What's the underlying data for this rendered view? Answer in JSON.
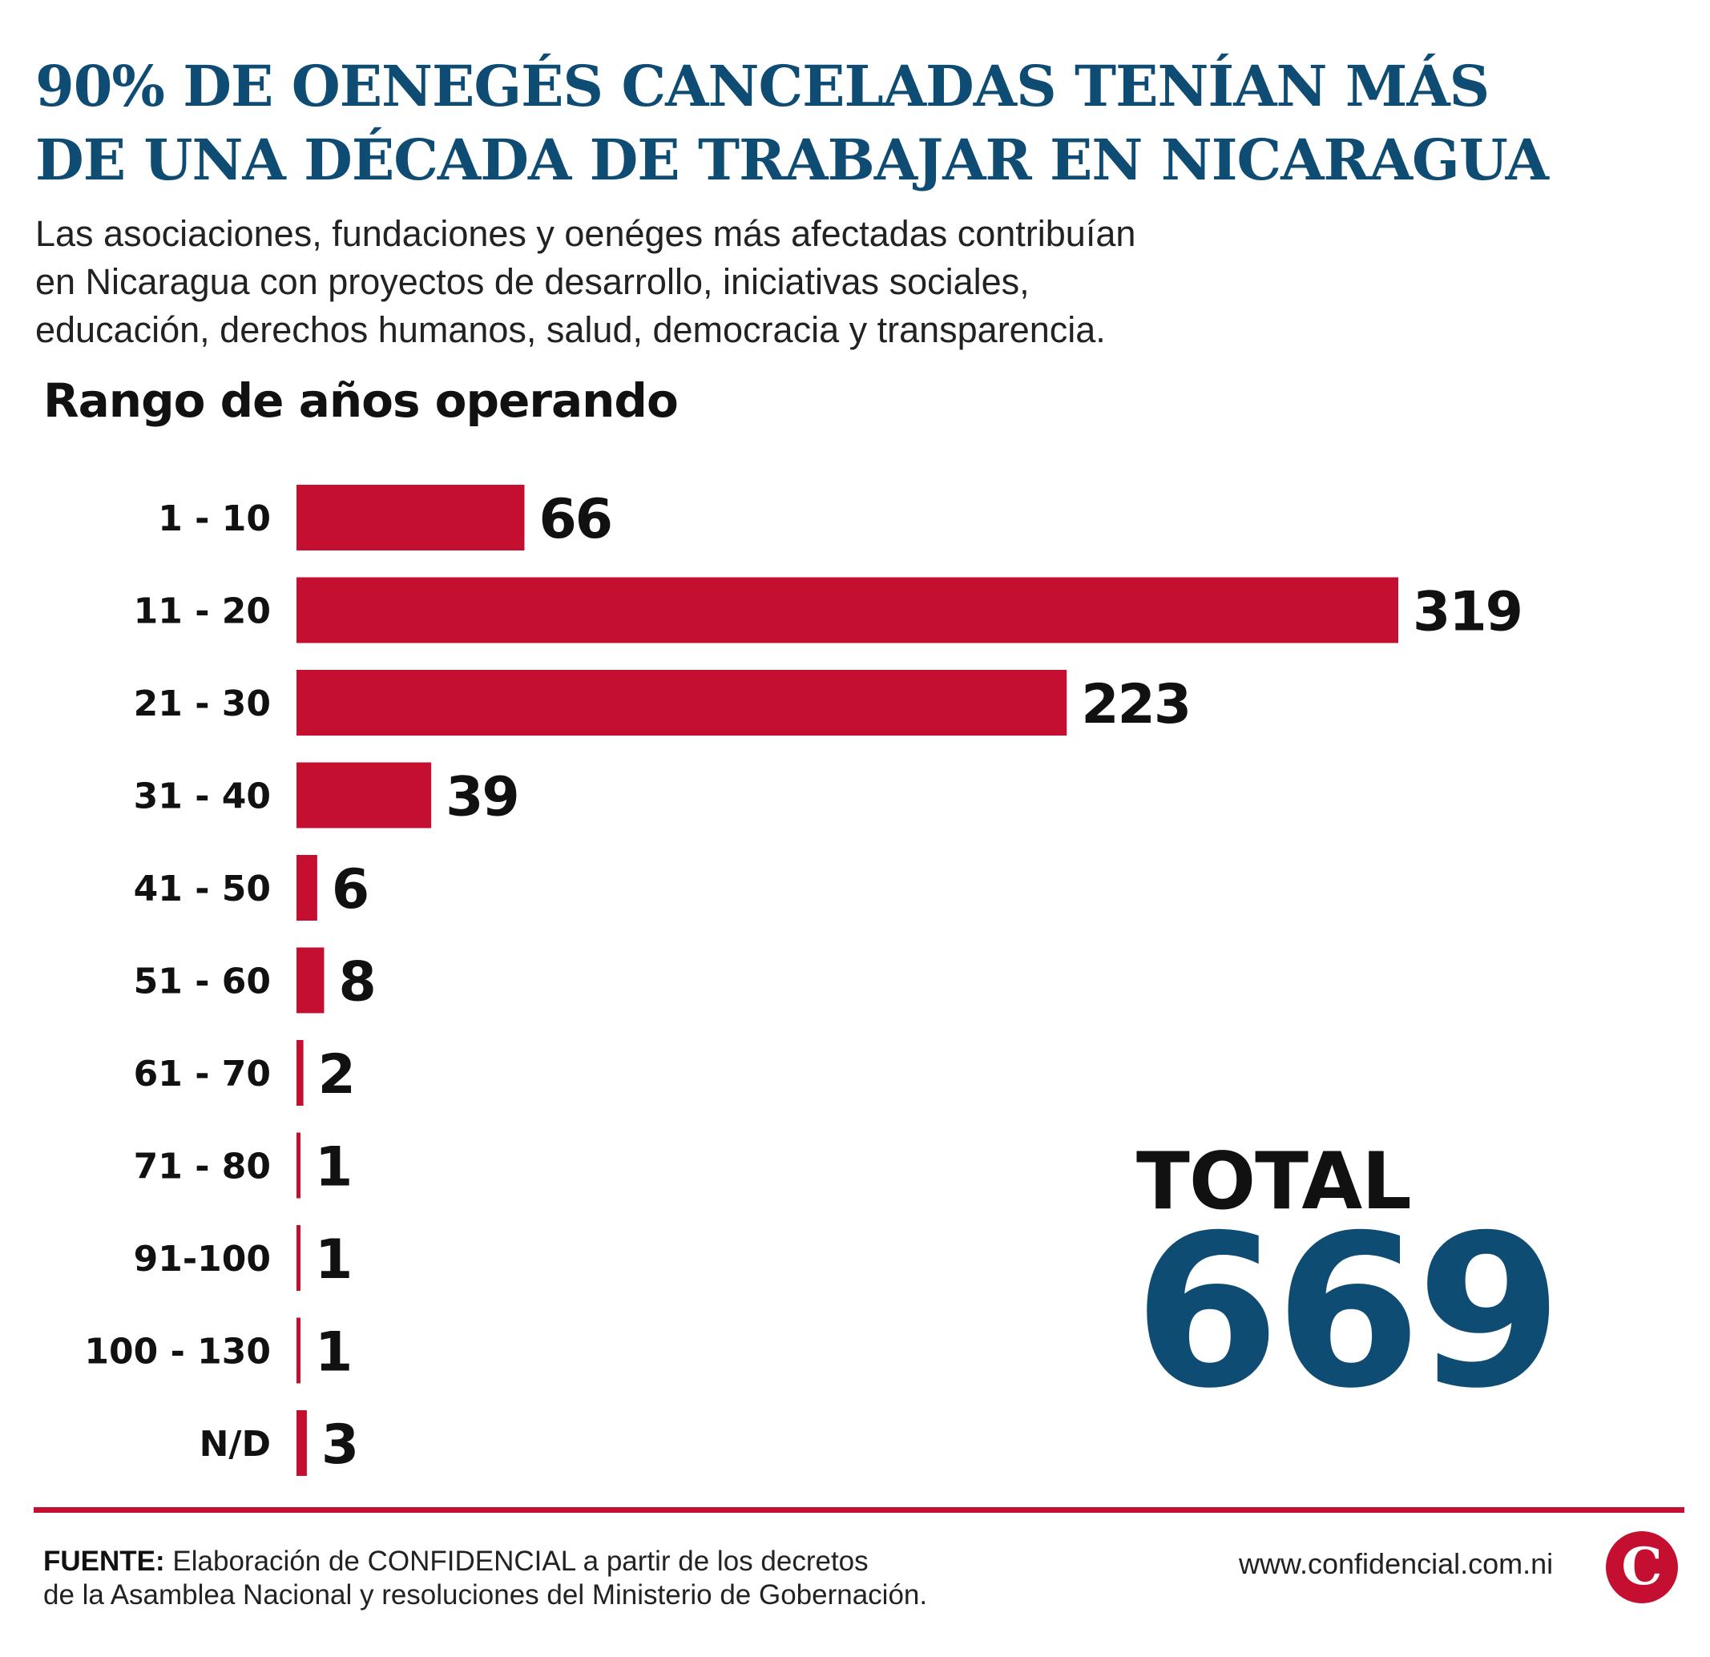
{
  "title_lines": [
    "90% DE OENEGÉS CANCELADAS TENÍAN MÁS",
    "DE UNA DÉCADA DE TRABAJAR EN NICARAGUA"
  ],
  "subtitle_lines": [
    "Las asociaciones, fundaciones y oenéges más afectadas contribuían",
    "en Nicaragua con proyectos de desarrollo, iniciativas sociales,",
    "educación, derechos humanos, salud, democracia y transparencia."
  ],
  "chart_data": {
    "type": "bar",
    "orientation": "horizontal",
    "title": "Rango de años operando",
    "categories": [
      "1 - 10",
      "11 - 20",
      "21 - 30",
      "31 - 40",
      "41 - 50",
      "51 - 60",
      "61 - 70",
      "71 - 80",
      "91-100",
      "100 - 130",
      "N/D"
    ],
    "values": [
      66,
      319,
      223,
      39,
      6,
      8,
      2,
      1,
      1,
      1,
      3
    ],
    "xlim": [
      0,
      319
    ],
    "grid": false,
    "data_labels": true,
    "bar_color": "#c40f30"
  },
  "total": {
    "label": "TOTAL",
    "value": "669"
  },
  "footer": {
    "source_label": "FUENTE:",
    "source_line1": "Elaboración de CONFIDENCIAL a partir de los decretos",
    "source_line2": "de la Asamblea Nacional y resoluciones del Ministerio de Gobernación.",
    "url": "www.confidencial.com.ni",
    "logo_letter": "C"
  },
  "colors": {
    "title": "#0f4c73",
    "bars": "#c40f30",
    "rule": "#c40f30",
    "total_value": "#0f4c73"
  }
}
